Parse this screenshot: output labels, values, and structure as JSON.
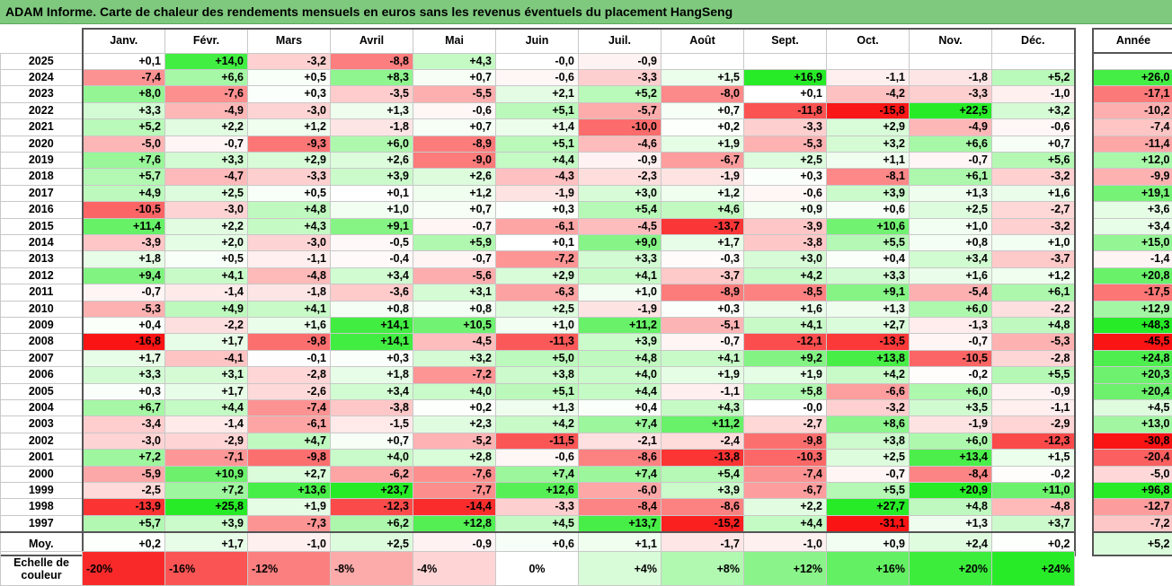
{
  "title": "ADAM Informe. Carte de chaleur des rendements mensuels en euros sans les revenus éventuels du placement HangSeng",
  "chart_data": {
    "type": "heatmap",
    "months": [
      "Janv.",
      "Févr.",
      "Mars",
      "Avril",
      "Mai",
      "Juin",
      "Juil.",
      "Août",
      "Sept.",
      "Oct.",
      "Nov.",
      "Déc."
    ],
    "year_header": "Année",
    "rows": [
      {
        "year": "2025",
        "values": [
          "+0,1",
          "+14,0",
          "-3,2",
          "-8,8",
          "+4,3",
          "-0,0",
          "-0,9",
          null,
          null,
          null,
          null,
          null
        ],
        "annual": null
      },
      {
        "year": "2024",
        "values": [
          "-7,4",
          "+6,6",
          "+0,5",
          "+8,3",
          "+0,7",
          "-0,6",
          "-3,3",
          "+1,5",
          "+16,9",
          "-1,1",
          "-1,8",
          "+5,2"
        ],
        "annual": "+26,0"
      },
      {
        "year": "2023",
        "values": [
          "+8,0",
          "-7,6",
          "+0,3",
          "-3,5",
          "-5,5",
          "+2,1",
          "+5,2",
          "-8,0",
          "+0,1",
          "-4,2",
          "-3,3",
          "-1,0"
        ],
        "annual": "-17,1"
      },
      {
        "year": "2022",
        "values": [
          "+3,3",
          "-4,9",
          "-3,0",
          "+1,3",
          "-0,6",
          "+5,1",
          "-5,7",
          "+0,7",
          "-11,8",
          "-15,8",
          "+22,5",
          "+3,2"
        ],
        "annual": "-10,2"
      },
      {
        "year": "2021",
        "values": [
          "+5,2",
          "+2,2",
          "+1,2",
          "-1,8",
          "+0,7",
          "+1,4",
          "-10,0",
          "+0,2",
          "-3,3",
          "+2,9",
          "-4,9",
          "-0,6"
        ],
        "annual": "-7,4"
      },
      {
        "year": "2020",
        "values": [
          "-5,0",
          "-0,7",
          "-9,3",
          "+6,0",
          "-8,9",
          "+5,1",
          "-4,6",
          "+1,9",
          "-5,3",
          "+3,2",
          "+6,6",
          "+0,7"
        ],
        "annual": "-11,4"
      },
      {
        "year": "2019",
        "values": [
          "+7,6",
          "+3,3",
          "+2,9",
          "+2,6",
          "-9,0",
          "+4,4",
          "-0,9",
          "-6,7",
          "+2,5",
          "+1,1",
          "-0,7",
          "+5,6"
        ],
        "annual": "+12,0"
      },
      {
        "year": "2018",
        "values": [
          "+5,7",
          "-4,7",
          "-3,3",
          "+3,9",
          "+2,6",
          "-4,3",
          "-2,3",
          "-1,9",
          "+0,3",
          "-8,1",
          "+6,1",
          "-3,2"
        ],
        "annual": "-9,9"
      },
      {
        "year": "2017",
        "values": [
          "+4,9",
          "+2,5",
          "+0,5",
          "+0,1",
          "+1,2",
          "-1,9",
          "+3,0",
          "+1,2",
          "-0,6",
          "+3,9",
          "+1,3",
          "+1,6"
        ],
        "annual": "+19,1"
      },
      {
        "year": "2016",
        "values": [
          "-10,5",
          "-3,0",
          "+4,8",
          "+1,0",
          "+0,7",
          "+0,3",
          "+5,4",
          "+4,6",
          "+0,9",
          "+0,6",
          "+2,5",
          "-2,7"
        ],
        "annual": "+3,6"
      },
      {
        "year": "2015",
        "values": [
          "+11,4",
          "+2,2",
          "+4,3",
          "+9,1",
          "-0,7",
          "-6,1",
          "-4,5",
          "-13,7",
          "-3,9",
          "+10,6",
          "+1,0",
          "-3,2"
        ],
        "annual": "+3,4"
      },
      {
        "year": "2014",
        "values": [
          "-3,9",
          "+2,0",
          "-3,0",
          "-0,5",
          "+5,9",
          "+0,1",
          "+9,0",
          "+1,7",
          "-3,8",
          "+5,5",
          "+0,8",
          "+1,0"
        ],
        "annual": "+15,0"
      },
      {
        "year": "2013",
        "values": [
          "+1,8",
          "+0,5",
          "-1,1",
          "-0,4",
          "-0,7",
          "-7,2",
          "+3,3",
          "-0,3",
          "+3,0",
          "+0,4",
          "+3,4",
          "-3,7"
        ],
        "annual": "-1,4"
      },
      {
        "year": "2012",
        "values": [
          "+9,4",
          "+4,1",
          "-4,8",
          "+3,4",
          "-5,6",
          "+2,9",
          "+4,1",
          "-3,7",
          "+4,2",
          "+3,3",
          "+1,6",
          "+1,2"
        ],
        "annual": "+20,8"
      },
      {
        "year": "2011",
        "values": [
          "-0,7",
          "-1,4",
          "-1,8",
          "-3,6",
          "+3,1",
          "-6,3",
          "+1,0",
          "-8,9",
          "-8,5",
          "+9,1",
          "-5,4",
          "+6,1"
        ],
        "annual": "-17,5"
      },
      {
        "year": "2010",
        "values": [
          "-5,3",
          "+4,9",
          "+4,1",
          "+0,8",
          "+0,8",
          "+2,5",
          "-1,9",
          "+0,3",
          "+1,6",
          "+1,3",
          "+6,0",
          "-2,2"
        ],
        "annual": "+12,9"
      },
      {
        "year": "2009",
        "values": [
          "+0,4",
          "-2,2",
          "+1,6",
          "+14,1",
          "+10,5",
          "+1,0",
          "+11,2",
          "-5,1",
          "+4,1",
          "+2,7",
          "-1,3",
          "+4,8"
        ],
        "annual": "+48,3"
      },
      {
        "year": "2008",
        "values": [
          "-16,8",
          "+1,7",
          "-9,8",
          "+14,1",
          "-4,5",
          "-11,3",
          "+3,9",
          "-0,7",
          "-12,1",
          "-13,5",
          "-0,7",
          "-5,3"
        ],
        "annual": "-45,5"
      },
      {
        "year": "2007",
        "values": [
          "+1,7",
          "-4,1",
          "-0,1",
          "+0,3",
          "+3,2",
          "+5,0",
          "+4,8",
          "+4,1",
          "+9,2",
          "+13,8",
          "-10,5",
          "-2,8"
        ],
        "annual": "+24,8"
      },
      {
        "year": "2006",
        "values": [
          "+3,3",
          "+3,1",
          "-2,8",
          "+1,8",
          "-7,2",
          "+3,8",
          "+4,0",
          "+1,9",
          "+1,9",
          "+4,2",
          "-0,2",
          "+5,5"
        ],
        "annual": "+20,3"
      },
      {
        "year": "2005",
        "values": [
          "+0,3",
          "+1,7",
          "-2,6",
          "+3,4",
          "+4,0",
          "+5,1",
          "+4,4",
          "-1,1",
          "+5,8",
          "-6,6",
          "+6,0",
          "-0,9"
        ],
        "annual": "+20,4"
      },
      {
        "year": "2004",
        "values": [
          "+6,7",
          "+4,4",
          "-7,4",
          "-3,8",
          "+0,2",
          "+1,3",
          "+0,4",
          "+4,3",
          "-0,0",
          "-3,2",
          "+3,5",
          "-1,1"
        ],
        "annual": "+4,5"
      },
      {
        "year": "2003",
        "values": [
          "-3,4",
          "-1,4",
          "-6,1",
          "-1,5",
          "+2,3",
          "+4,2",
          "+7,4",
          "+11,2",
          "-2,7",
          "+8,6",
          "-1,9",
          "-2,9"
        ],
        "annual": "+13,0"
      },
      {
        "year": "2002",
        "values": [
          "-3,0",
          "-2,9",
          "+4,7",
          "+0,7",
          "-5,2",
          "-11,5",
          "-2,1",
          "-2,4",
          "-9,8",
          "+3,8",
          "+6,0",
          "-12,3"
        ],
        "annual": "-30,8"
      },
      {
        "year": "2001",
        "values": [
          "+7,2",
          "-7,1",
          "-9,8",
          "+4,0",
          "+2,8",
          "-0,6",
          "-8,6",
          "-13,8",
          "-10,3",
          "+2,5",
          "+13,4",
          "+1,5"
        ],
        "annual": "-20,4"
      },
      {
        "year": "2000",
        "values": [
          "-5,9",
          "+10,9",
          "+2,7",
          "-6,2",
          "-7,6",
          "+7,4",
          "+7,4",
          "+5,4",
          "-7,4",
          "-0,7",
          "-8,4",
          "-0,2"
        ],
        "annual": "-5,0"
      },
      {
        "year": "1999",
        "values": [
          "-2,5",
          "+7,2",
          "+13,6",
          "+23,7",
          "-7,7",
          "+12,6",
          "-6,0",
          "+3,9",
          "-6,7",
          "+5,5",
          "+20,9",
          "+11,0"
        ],
        "annual": "+96,8"
      },
      {
        "year": "1998",
        "values": [
          "-13,9",
          "+25,8",
          "+1,9",
          "-12,3",
          "-14,4",
          "-3,3",
          "-8,4",
          "-8,6",
          "+2,2",
          "+27,7",
          "+4,8",
          "-4,8"
        ],
        "annual": "-12,7"
      },
      {
        "year": "1997",
        "values": [
          "+5,7",
          "+3,9",
          "-7,3",
          "+6,2",
          "+12,8",
          "+4,5",
          "+13,7",
          "-15,2",
          "+4,4",
          "-31,1",
          "+1,3",
          "+3,7"
        ],
        "annual": "-7,2"
      }
    ],
    "average": {
      "label": "Moy.",
      "values": [
        "+0,2",
        "+1,7",
        "-1,0",
        "+2,5",
        "-0,9",
        "+0,6",
        "+1,1",
        "-1,7",
        "-1,0",
        "+0,9",
        "+2,4",
        "+0,2"
      ],
      "annual": "+5,2"
    },
    "scale": {
      "label": "Echelle de couleur",
      "steps": [
        {
          "label": "-20%",
          "value": -20
        },
        {
          "label": "-16%",
          "value": -16
        },
        {
          "label": "-12%",
          "value": -12
        },
        {
          "label": "-8%",
          "value": -8
        },
        {
          "label": "-4%",
          "value": -4
        },
        {
          "label": "0%",
          "value": 0
        },
        {
          "label": "+4%",
          "value": 4
        },
        {
          "label": "+8%",
          "value": 8
        },
        {
          "label": "+12%",
          "value": 12
        },
        {
          "label": "+16%",
          "value": 16
        },
        {
          "label": "+20%",
          "value": 20
        },
        {
          "label": "+24%",
          "value": 24
        }
      ]
    }
  }
}
